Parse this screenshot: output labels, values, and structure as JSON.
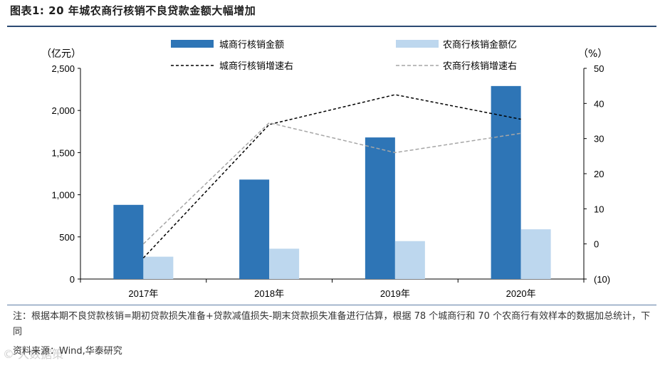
{
  "header": {
    "title": "图表1:  20 年城农商行核销不良贷款金额大幅增加"
  },
  "chart_data": {
    "type": "bar",
    "categories": [
      "2017年",
      "2018年",
      "2019年",
      "2020年"
    ],
    "y_left_unit": "（亿元）",
    "y_right_unit": "（%）",
    "y_left_range": [
      0,
      2500
    ],
    "y_left_ticks": [
      "0",
      "500",
      "1,000",
      "1,500",
      "2,000",
      "2,500"
    ],
    "y_right_range": [
      -10,
      50
    ],
    "y_right_ticks": [
      "(10)",
      "0",
      "10",
      "20",
      "30",
      "40",
      "50"
    ],
    "series": [
      {
        "name": "城商行核销金额",
        "kind": "bar",
        "axis": "left",
        "color": "#2e75b6",
        "values": [
          880,
          1180,
          1680,
          2290
        ]
      },
      {
        "name": "农商行核销金额亿",
        "kind": "bar",
        "axis": "left",
        "color": "#bdd7ee",
        "values": [
          265,
          360,
          450,
          590
        ]
      },
      {
        "name": "城商行核销增速右",
        "kind": "line",
        "axis": "right",
        "color": "#000000",
        "dash": "4,3",
        "values": [
          -4,
          34,
          42.5,
          35.5
        ]
      },
      {
        "name": "农商行核销增速右",
        "kind": "line",
        "axis": "right",
        "color": "#a6a6a6",
        "dash": "5,3",
        "values": [
          0,
          34.5,
          26,
          31.5
        ]
      }
    ],
    "grid": false,
    "legend_position": "top"
  },
  "footer": {
    "note": "注：根据本期不良贷款核销=期初贷款损失准备+贷款减值损失-期末贷款损失准备进行估算，根据 78 个城商行和 70 个农商行有效样本的数据加总统计，下同",
    "source": "资料来源：Wind,华泰研究",
    "watermark": "© 大数据策"
  }
}
